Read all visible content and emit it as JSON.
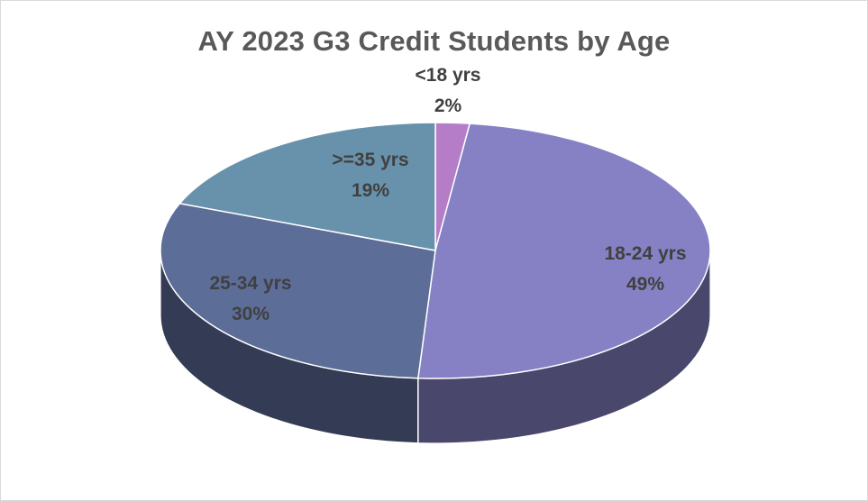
{
  "chart_data": {
    "type": "pie",
    "title": "AY 2023 G3 Credit Students by Age",
    "slices": [
      {
        "label": "<18 yrs",
        "percent_label": "2%",
        "value": 2,
        "color": "#b57cc8"
      },
      {
        "label": "18-24 yrs",
        "percent_label": "49%",
        "value": 49,
        "color": "#8581c4"
      },
      {
        "label": "25-34 yrs",
        "percent_label": "30%",
        "value": 30,
        "color": "#5c6d98"
      },
      {
        "label": ">=35 yrs",
        "percent_label": "19%",
        "value": 19,
        "color": "#6892ab"
      }
    ],
    "style": "3d"
  }
}
